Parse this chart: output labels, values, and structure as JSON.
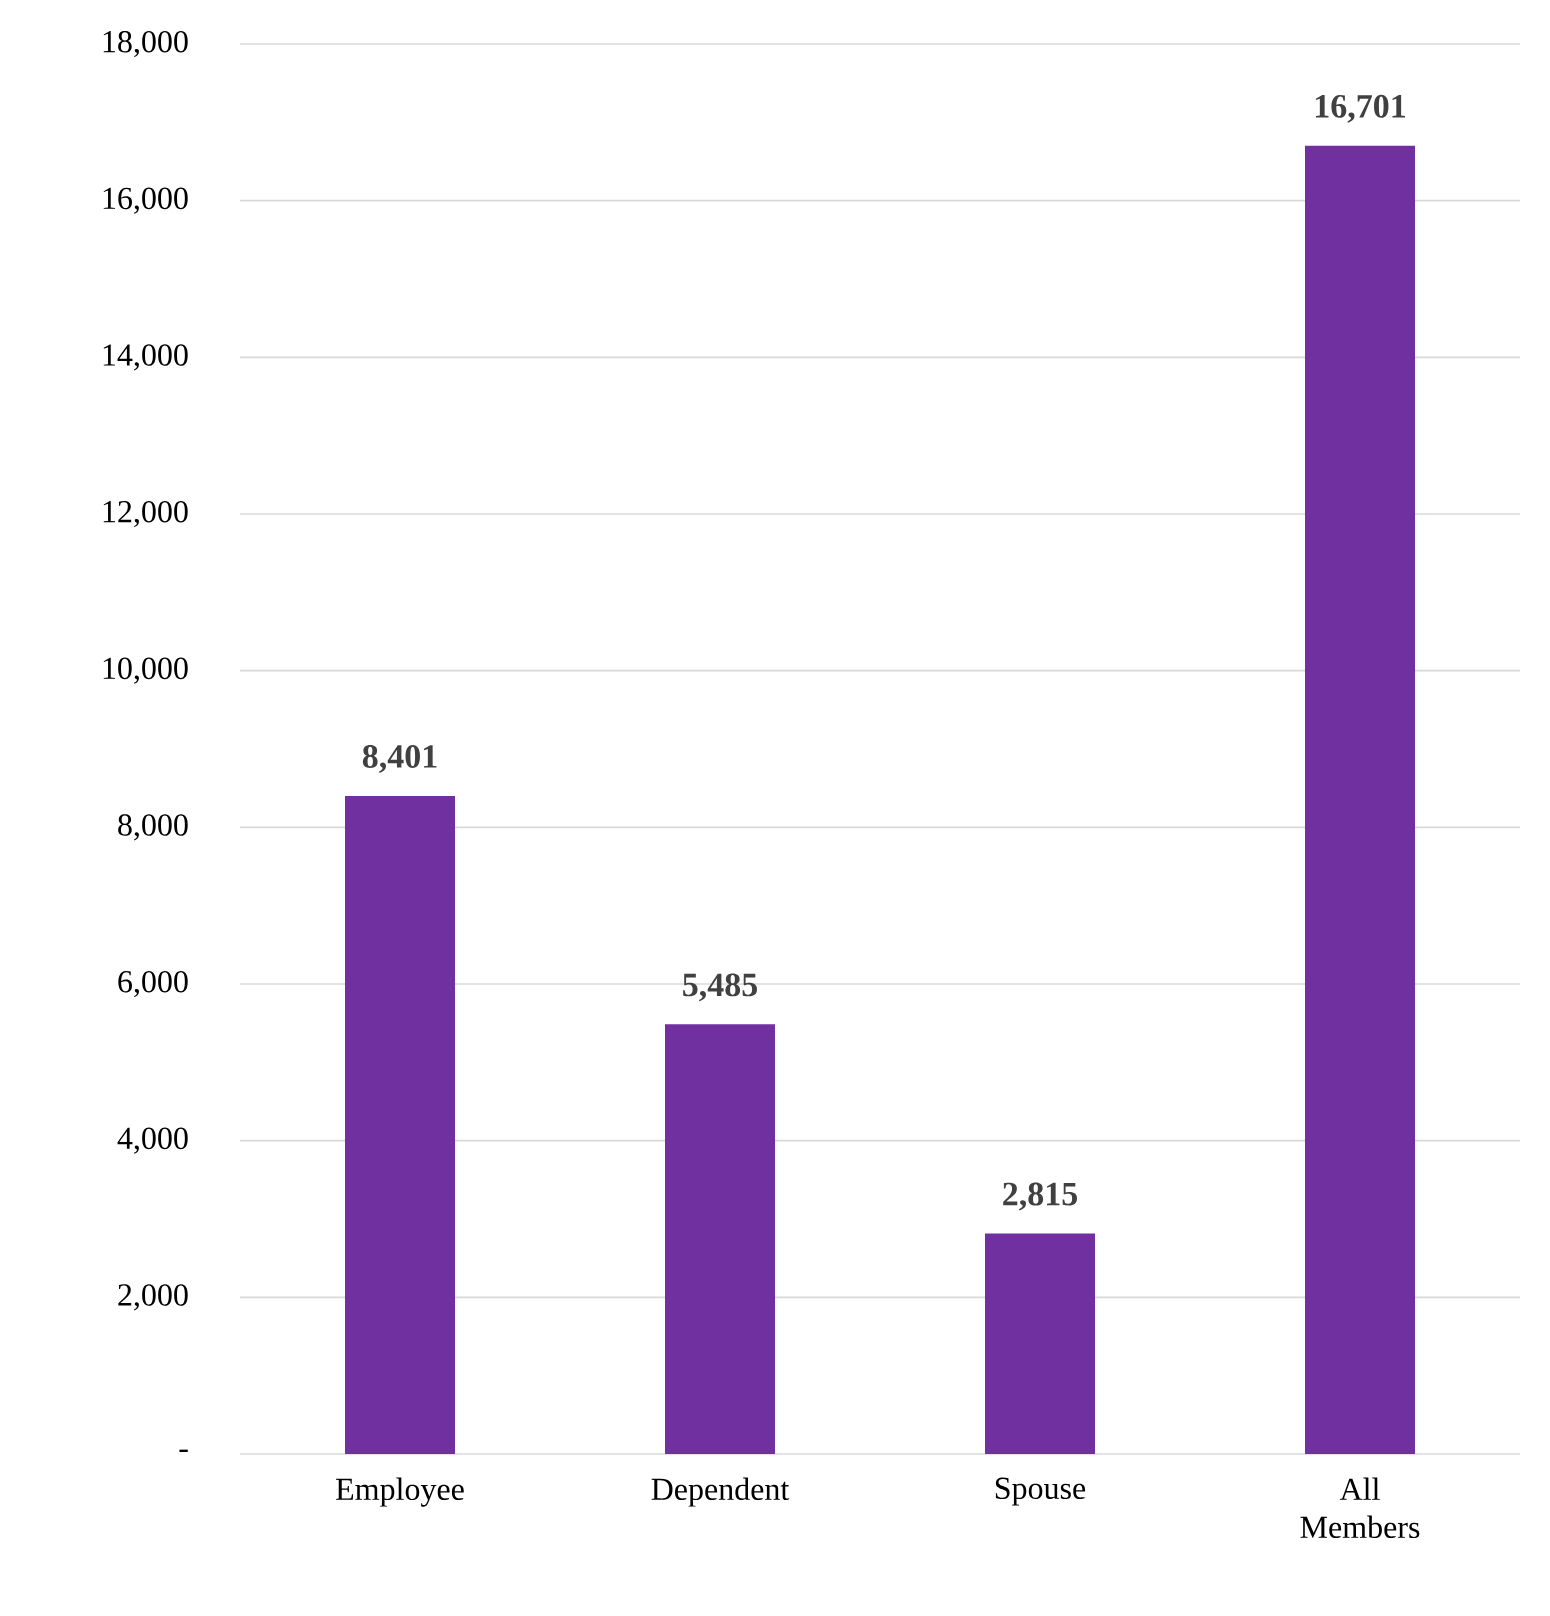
{
  "chart_data": {
    "type": "bar",
    "categories": [
      "Employee",
      "Dependent",
      "Spouse",
      "All Members"
    ],
    "values": [
      8401,
      5485,
      2815,
      16701
    ],
    "value_labels": [
      "8,401",
      "5,485",
      "2,815",
      "16,701"
    ],
    "color": "#7030a0",
    "ylim": [
      0,
      18000
    ],
    "yticks": [
      {
        "value": 0,
        "label": "-"
      },
      {
        "value": 2000,
        "label": "2,000"
      },
      {
        "value": 4000,
        "label": "4,000"
      },
      {
        "value": 6000,
        "label": "6,000"
      },
      {
        "value": 8000,
        "label": "8,000"
      },
      {
        "value": 10000,
        "label": "10,000"
      },
      {
        "value": 12000,
        "label": "12,000"
      },
      {
        "value": 14000,
        "label": "14,000"
      },
      {
        "value": 16000,
        "label": "16,000"
      },
      {
        "value": 18000,
        "label": "18,000"
      }
    ],
    "grid": "y"
  }
}
